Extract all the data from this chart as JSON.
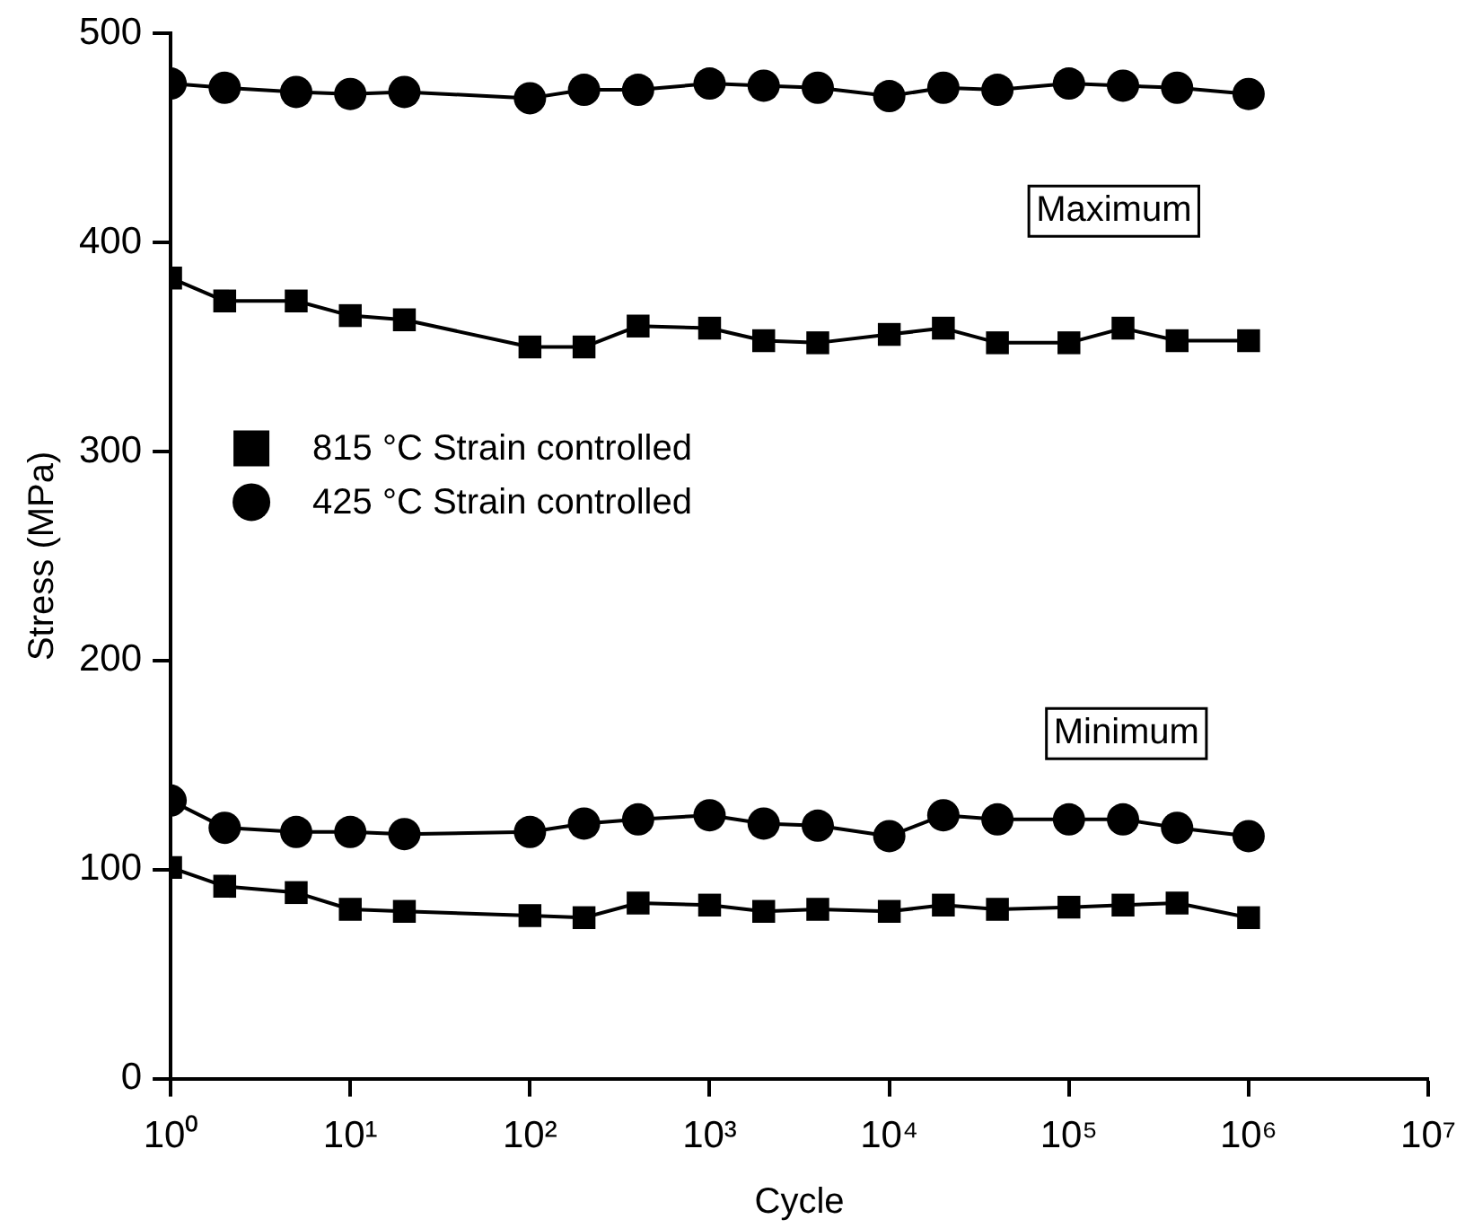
{
  "chart_data": {
    "type": "line",
    "xlabel": "Cycle",
    "ylabel": "Stress (MPa)",
    "log": "x",
    "x": [
      1,
      2,
      5,
      10,
      20,
      100,
      200,
      400,
      1000,
      2000,
      4000,
      10000,
      20000,
      40000,
      100000,
      200000,
      400000,
      1000000
    ],
    "xlim": [
      1,
      10000000
    ],
    "xticks": [
      {
        "value": 1,
        "label": "10⁰"
      },
      {
        "value": 10,
        "label": "10¹"
      },
      {
        "value": 100,
        "label": "10²"
      },
      {
        "value": 1000,
        "label": "10³"
      },
      {
        "value": 10000,
        "label": "10⁴"
      },
      {
        "value": 100000,
        "label": "10⁵"
      },
      {
        "value": 1000000,
        "label": "10⁶"
      },
      {
        "value": 10000000,
        "label": "10⁷"
      }
    ],
    "ylim": [
      0,
      500
    ],
    "yticks": [
      0,
      100,
      200,
      300,
      400,
      500
    ],
    "grid": false,
    "legend": "left",
    "line_style": "solid",
    "series": [
      {
        "name": "815 °C Strain controlled",
        "color": "#000000",
        "marker": "square",
        "values": [
          383,
          372,
          372,
          365,
          363,
          350,
          350,
          360,
          359,
          353,
          352,
          356,
          359,
          352,
          352,
          359,
          353,
          353
        ]
      },
      {
        "name": "425 °C Strain controlled",
        "color": "#000000",
        "marker": "circle",
        "values": [
          476,
          474,
          472,
          471,
          472,
          469,
          473,
          473,
          476,
          475,
          474,
          470,
          474,
          473,
          476,
          475,
          474,
          471
        ]
      },
      {
        "color": "#000000",
        "marker": "square",
        "values": [
          101,
          92,
          89,
          81,
          80,
          78,
          77,
          84,
          83,
          80,
          81,
          80,
          83,
          81,
          82,
          83,
          84,
          77
        ]
      },
      {
        "color": "#000000",
        "marker": "circle",
        "values": [
          133,
          120,
          118,
          118,
          117,
          118,
          122,
          124,
          126,
          122,
          121,
          116,
          126,
          124,
          124,
          124,
          120,
          116
        ]
      }
    ],
    "annotations": [
      "Maximum",
      "Minimum"
    ]
  }
}
